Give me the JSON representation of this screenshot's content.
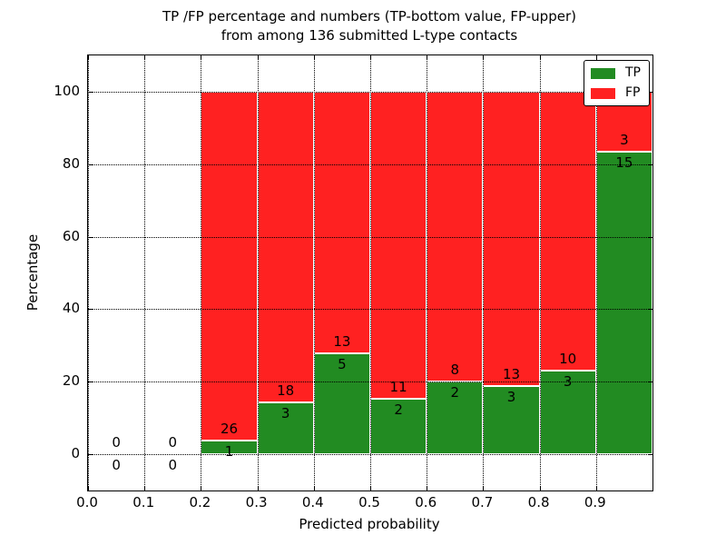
{
  "chart_data": {
    "type": "bar",
    "stacked": true,
    "title_lines": [
      "TP /FP percentage and numbers (TP-bottom value, FP-upper)",
      "from among 136 submitted L-type contacts"
    ],
    "xlabel": "Predicted probability",
    "ylabel": "Percentage",
    "xlim": [
      0.0,
      1.0
    ],
    "ylim": [
      -10,
      110
    ],
    "grid": true,
    "colors": {
      "tp": "#228B22",
      "fp": "#FF2121",
      "bar_edge": "#ffffff"
    },
    "x_ticks": [
      {
        "value": 0.0,
        "label": "0.0"
      },
      {
        "value": 0.1,
        "label": "0.1"
      },
      {
        "value": 0.2,
        "label": "0.2"
      },
      {
        "value": 0.3,
        "label": "0.3"
      },
      {
        "value": 0.4,
        "label": "0.4"
      },
      {
        "value": 0.5,
        "label": "0.5"
      },
      {
        "value": 0.6,
        "label": "0.6"
      },
      {
        "value": 0.7,
        "label": "0.7"
      },
      {
        "value": 0.8,
        "label": "0.8"
      },
      {
        "value": 0.9,
        "label": "0.9"
      },
      {
        "value": 1.0,
        "label": ""
      }
    ],
    "y_ticks": [
      {
        "value": 0,
        "label": "0"
      },
      {
        "value": 20,
        "label": "20"
      },
      {
        "value": 40,
        "label": "40"
      },
      {
        "value": 60,
        "label": "60"
      },
      {
        "value": 80,
        "label": "80"
      },
      {
        "value": 100,
        "label": "100"
      }
    ],
    "legend": {
      "position": "upper right",
      "entries": [
        {
          "label": "TP",
          "color": "#228B22"
        },
        {
          "label": "FP",
          "color": "#FF2121"
        }
      ]
    },
    "total_contacts": 136,
    "bins": [
      {
        "range": [
          0.0,
          0.1
        ],
        "tp_count": 0,
        "fp_count": 0,
        "tp_pct": 0,
        "fp_pct": 0
      },
      {
        "range": [
          0.1,
          0.2
        ],
        "tp_count": 0,
        "fp_count": 0,
        "tp_pct": 0,
        "fp_pct": 0
      },
      {
        "range": [
          0.2,
          0.3
        ],
        "tp_count": 1,
        "fp_count": 26,
        "tp_pct": 3.7,
        "fp_pct": 96.3
      },
      {
        "range": [
          0.3,
          0.4
        ],
        "tp_count": 3,
        "fp_count": 18,
        "tp_pct": 14.29,
        "fp_pct": 85.71
      },
      {
        "range": [
          0.4,
          0.5
        ],
        "tp_count": 5,
        "fp_count": 13,
        "tp_pct": 27.78,
        "fp_pct": 72.22
      },
      {
        "range": [
          0.5,
          0.6
        ],
        "tp_count": 2,
        "fp_count": 11,
        "tp_pct": 15.38,
        "fp_pct": 84.62
      },
      {
        "range": [
          0.6,
          0.7
        ],
        "tp_count": 2,
        "fp_count": 8,
        "tp_pct": 20.0,
        "fp_pct": 80.0
      },
      {
        "range": [
          0.7,
          0.8
        ],
        "tp_count": 3,
        "fp_count": 13,
        "tp_pct": 18.75,
        "fp_pct": 81.25
      },
      {
        "range": [
          0.8,
          0.9
        ],
        "tp_count": 3,
        "fp_count": 10,
        "tp_pct": 23.08,
        "fp_pct": 76.92
      },
      {
        "range": [
          0.9,
          1.0
        ],
        "tp_count": 15,
        "fp_count": 3,
        "tp_pct": 83.33,
        "fp_pct": 16.67
      }
    ]
  }
}
